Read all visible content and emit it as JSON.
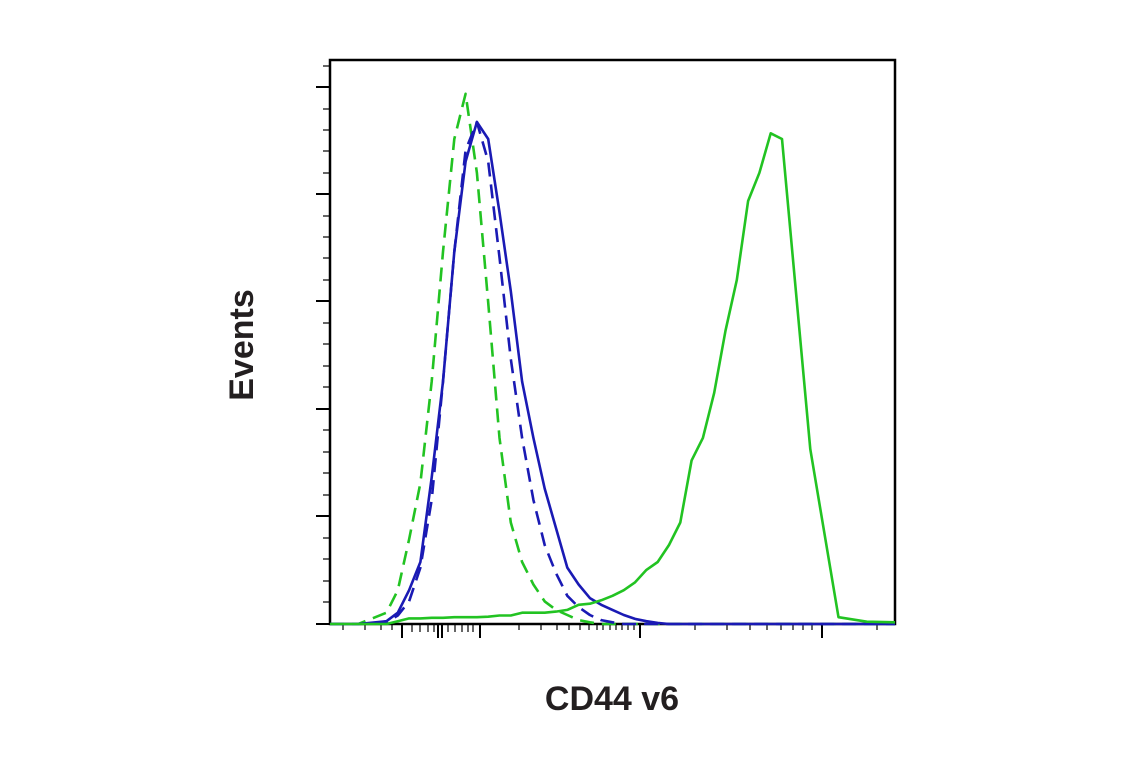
{
  "chart_data": {
    "type": "line",
    "x_label": "CD44 v6",
    "y_label": "Events",
    "xlim": [
      0,
      100
    ],
    "ylim": [
      0,
      100
    ],
    "x": [
      0,
      5,
      10,
      12,
      14,
      16,
      18,
      20,
      22,
      24,
      26,
      28,
      30,
      32,
      34,
      36,
      38,
      40,
      42,
      44,
      46,
      48,
      50,
      52,
      54,
      56,
      58,
      60,
      62,
      64,
      66,
      68,
      70,
      72,
      74,
      76,
      78,
      80,
      85,
      90,
      95,
      100
    ],
    "series": [
      {
        "color": "#22c322",
        "dashed": true,
        "values": [
          0,
          0,
          2,
          6,
          15,
          25,
          43,
          66,
          86,
          94,
          80,
          57,
          33,
          18,
          11,
          7,
          4,
          2.5,
          1.6,
          0.7,
          0.3,
          0,
          0,
          0,
          0,
          0,
          0,
          0,
          0,
          0,
          0,
          0,
          0,
          0,
          0,
          0,
          0,
          0,
          0,
          0,
          0,
          0
        ]
      },
      {
        "color": "#1a1ab4",
        "dashed": true,
        "values": [
          0,
          0,
          0.3,
          1.5,
          4,
          10,
          22,
          43,
          66,
          84,
          89,
          82,
          65,
          47,
          33,
          22,
          14,
          9,
          5,
          3,
          1.6,
          0.7,
          0.3,
          0,
          0,
          0,
          0,
          0,
          0,
          0,
          0,
          0,
          0,
          0,
          0,
          0,
          0,
          0,
          0,
          0,
          0,
          0
        ]
      },
      {
        "color": "#1a1ab4",
        "dashed": false,
        "values": [
          0,
          0,
          0.5,
          2,
          6,
          11,
          26,
          43,
          66,
          82,
          89,
          86,
          73,
          59,
          43,
          33,
          24,
          17,
          10,
          7,
          4.6,
          3.4,
          2.5,
          1.6,
          0.9,
          0.5,
          0.2,
          0,
          0,
          0,
          0,
          0,
          0,
          0,
          0,
          0,
          0,
          0,
          0,
          0,
          0,
          0
        ]
      },
      {
        "color": "#22c322",
        "dashed": false,
        "values": [
          0,
          0,
          0,
          0.5,
          1,
          1,
          1.1,
          1.1,
          1.2,
          1.2,
          1.2,
          1.3,
          1.5,
          1.5,
          2,
          2,
          2,
          2.2,
          2.5,
          3.4,
          3.6,
          4.2,
          5,
          6,
          7.4,
          9.6,
          11,
          14,
          18,
          29,
          33,
          41,
          52,
          61,
          75,
          80,
          87,
          86,
          31,
          1.2,
          0.4,
          0.3
        ]
      }
    ]
  }
}
